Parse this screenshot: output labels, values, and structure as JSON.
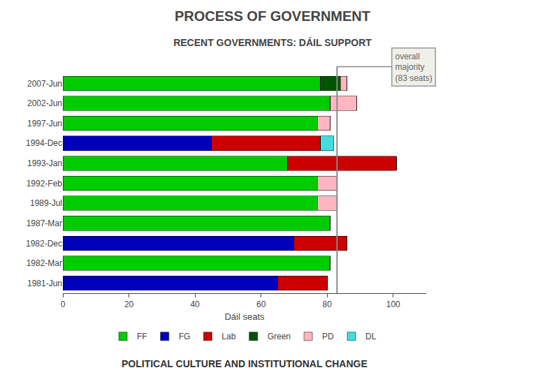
{
  "chart_data": {
    "type": "bar",
    "orientation": "horizontal",
    "stacked": true,
    "title": "PROCESS OF GOVERNMENT",
    "subtitle": "RECENT GOVERNMENTS: DÁIL SUPPORT",
    "footer": "POLITICAL CULTURE AND INSTITUTIONAL CHANGE",
    "xlabel": "Dáil seats",
    "categories": [
      "2007-Jun",
      "2002-Jun",
      "1997-Jun",
      "1994-Dec",
      "1993-Jan",
      "1992-Feb",
      "1989-Jul",
      "1987-Mar",
      "1982-Dec",
      "1982-Mar",
      "1981-Jun"
    ],
    "series": [
      {
        "name": "FF",
        "color": "#00cc00",
        "values": [
          78,
          81,
          77,
          0,
          68,
          77,
          77,
          81,
          0,
          81,
          0
        ]
      },
      {
        "name": "FG",
        "color": "#0000bb",
        "values": [
          0,
          0,
          0,
          45,
          0,
          0,
          0,
          0,
          70,
          0,
          65
        ]
      },
      {
        "name": "Lab",
        "color": "#cc0000",
        "values": [
          0,
          0,
          0,
          33,
          33,
          0,
          0,
          0,
          16,
          0,
          15
        ]
      },
      {
        "name": "Green",
        "color": "#005500",
        "values": [
          6,
          0,
          0,
          0,
          0,
          0,
          0,
          0,
          0,
          0,
          0
        ]
      },
      {
        "name": "PD",
        "color": "#ffb6c1",
        "values": [
          2,
          8,
          4,
          0,
          0,
          6,
          6,
          0,
          0,
          0,
          0
        ]
      },
      {
        "name": "DL",
        "color": "#44dddd",
        "values": [
          0,
          0,
          0,
          4,
          0,
          0,
          0,
          0,
          0,
          0,
          0
        ]
      }
    ],
    "xlim": [
      0,
      110
    ],
    "xticks": [
      0,
      20,
      40,
      60,
      80,
      100
    ],
    "grid": false,
    "legend": "bottom",
    "reference_line": {
      "value": 83,
      "label": "overall\nmajority\n(83 seats)"
    }
  }
}
